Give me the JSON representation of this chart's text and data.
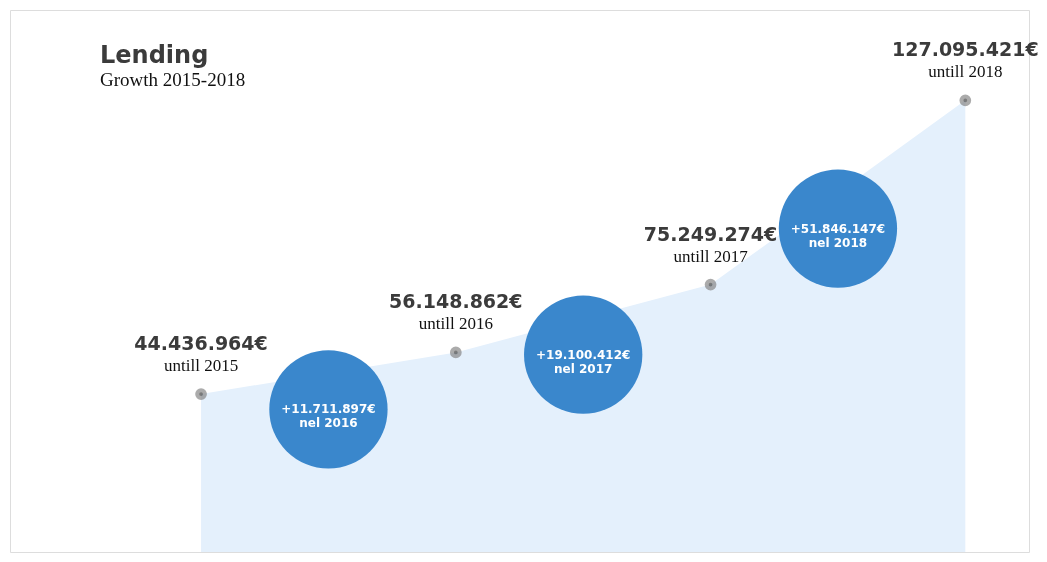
{
  "chart_data": {
    "type": "area",
    "title": "Lending",
    "subtitle": "Growth 2015-2018",
    "categories": [
      "untill 2015",
      "untill 2016",
      "untill 2017",
      "untill 2018"
    ],
    "series": [
      {
        "color": "#e4f0fc",
        "values": [
          44436964,
          56148862,
          75249274,
          127095421
        ],
        "value_labels": [
          "44.436.964€",
          "56.148.862€",
          "75.249.274€",
          "127.095.421€"
        ]
      }
    ],
    "marker": "circle",
    "annotations": [
      "+11.711.897€\nnel 2016",
      "+19.100.412€\nnel 2017",
      "+51.846.147€\nnel 2018"
    ]
  }
}
